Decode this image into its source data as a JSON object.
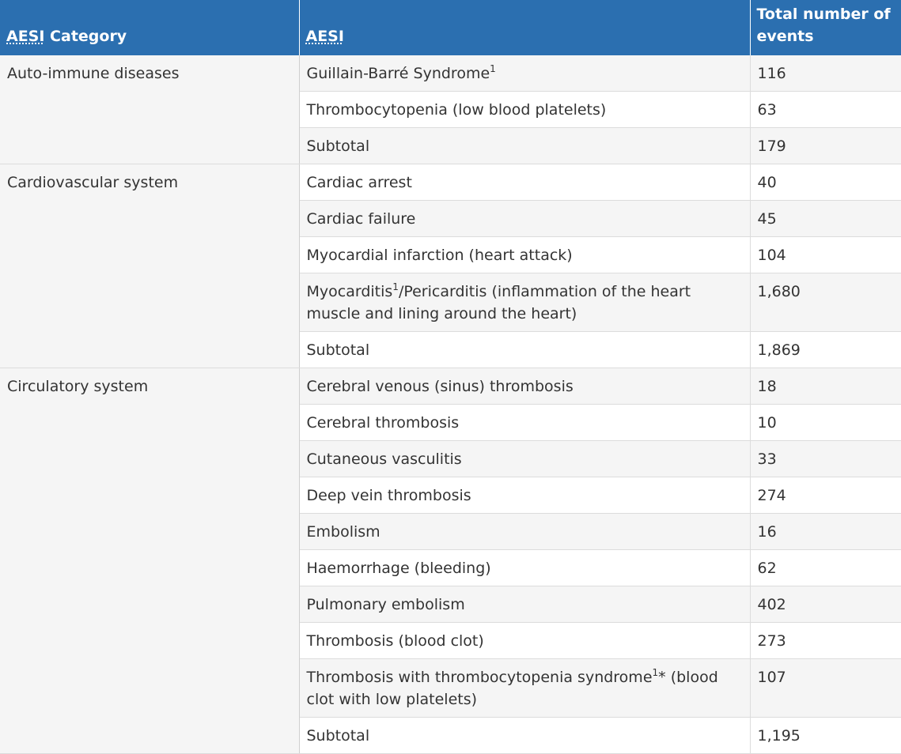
{
  "header": {
    "col_category": "AESI Category",
    "col_category_abbr": "AESI",
    "col_category_rest": " Category",
    "col_aesi": "AESI",
    "col_total": "Total number of events"
  },
  "groups": [
    {
      "category": "Auto-immune diseases",
      "rows": [
        {
          "aesi": "Guillain-Barré Syndrome",
          "sup": "1",
          "aesi_rest": "",
          "total": "116"
        },
        {
          "aesi": "Thrombocytopenia (low blood platelets)",
          "total": "63"
        },
        {
          "aesi": "Subtotal",
          "total": "179"
        }
      ]
    },
    {
      "category": "Cardiovascular system",
      "rows": [
        {
          "aesi": "Cardiac arrest",
          "total": "40"
        },
        {
          "aesi": "Cardiac failure",
          "total": "45"
        },
        {
          "aesi": "Myocardial infarction (heart attack)",
          "total": "104"
        },
        {
          "aesi": "Myocarditis",
          "sup": "1",
          "aesi_rest": "/Pericarditis (inflammation of the heart muscle and lining around the heart)",
          "total": "1,680"
        },
        {
          "aesi": "Subtotal",
          "total": "1,869"
        }
      ]
    },
    {
      "category": "Circulatory system",
      "rows": [
        {
          "aesi": "Cerebral venous (sinus) thrombosis",
          "total": "18"
        },
        {
          "aesi": "Cerebral thrombosis",
          "total": "10"
        },
        {
          "aesi": "Cutaneous vasculitis",
          "total": "33"
        },
        {
          "aesi": "Deep vein thrombosis",
          "total": "274"
        },
        {
          "aesi": "Embolism",
          "total": "16"
        },
        {
          "aesi": "Haemorrhage (bleeding)",
          "total": "62"
        },
        {
          "aesi": "Pulmonary embolism",
          "total": "402"
        },
        {
          "aesi": "Thrombosis (blood clot)",
          "total": "273"
        },
        {
          "aesi": "Thrombosis with thrombocytopenia syndrome",
          "sup": "1",
          "aesi_rest": "* (blood clot with low platelets)",
          "total": "107"
        },
        {
          "aesi": "Subtotal",
          "total": "1,195"
        }
      ]
    }
  ]
}
